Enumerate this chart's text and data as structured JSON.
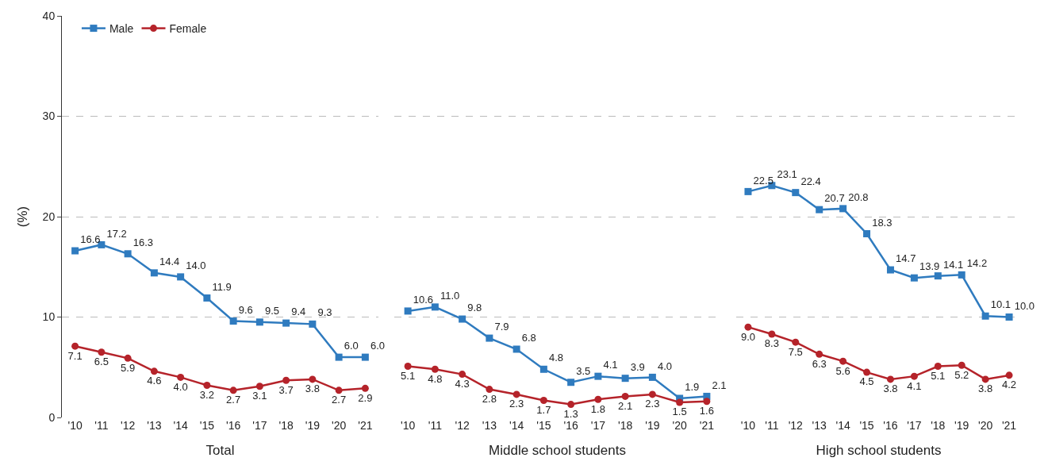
{
  "chart_data": [
    {
      "type": "line",
      "xlabel": "Total",
      "ylabel": "(%)",
      "categories": [
        "'10",
        "'11",
        "'12",
        "'13",
        "'14",
        "'15",
        "'16",
        "'17",
        "'18",
        "'19",
        "'20",
        "'21"
      ],
      "ylim": [
        0,
        40
      ],
      "yticks": [
        0,
        10,
        20,
        30,
        40
      ],
      "grid": "y",
      "legend": "top left",
      "line_style": "solid",
      "series": [
        {
          "name": "Male",
          "color": "#2f7bbf",
          "marker": "square",
          "values": [
            16.6,
            17.2,
            16.3,
            14.4,
            14.0,
            11.9,
            9.6,
            9.5,
            9.4,
            9.3,
            6.0,
            6.0
          ],
          "value_labels": [
            "16.6",
            "17.2",
            "16.3",
            "14.4",
            "14.0",
            "11.9",
            "9.6",
            "9.5",
            "9.4",
            "9.3",
            "6.0",
            "6.0"
          ]
        },
        {
          "name": "Female",
          "color": "#b5232a",
          "marker": "circle",
          "values": [
            7.1,
            6.5,
            5.9,
            4.6,
            4.0,
            3.2,
            2.7,
            3.1,
            3.7,
            3.8,
            2.7,
            2.9
          ],
          "value_labels": [
            "7.1",
            "6.5",
            "5.9",
            "4.6",
            "4.0",
            "3.2",
            "2.7",
            "3.1",
            "3.7",
            "3.8",
            "2.7",
            "2.9"
          ]
        }
      ]
    },
    {
      "type": "line",
      "xlabel": "Middle school students",
      "categories": [
        "'10",
        "'11",
        "'12",
        "'13",
        "'14",
        "'15",
        "'16",
        "'17",
        "'18",
        "'19",
        "'20",
        "'21"
      ],
      "ylim": [
        0,
        40
      ],
      "yticks": [
        0,
        10,
        20,
        30,
        40
      ],
      "tick_labels": "x",
      "grid": "y",
      "line_style": "solid",
      "series": [
        {
          "color": "#2f7bbf",
          "marker": "square",
          "values": [
            10.6,
            11.0,
            9.8,
            7.9,
            6.8,
            4.8,
            3.5,
            4.1,
            3.9,
            4.0,
            1.9,
            2.1
          ],
          "value_labels": [
            "10.6",
            "11.0",
            "9.8",
            "7.9",
            "6.8",
            "4.8",
            "3.5",
            "4.1",
            "3.9",
            "4.0",
            "1.9",
            "2.1"
          ]
        },
        {
          "color": "#b5232a",
          "marker": "circle",
          "values": [
            5.1,
            4.8,
            4.3,
            2.8,
            2.3,
            1.7,
            1.3,
            1.8,
            2.1,
            2.3,
            1.5,
            1.6
          ],
          "value_labels": [
            "5.1",
            "4.8",
            "4.3",
            "2.8",
            "2.3",
            "1.7",
            "1.3",
            "1.8",
            "2.1",
            "2.3",
            "1.5",
            "1.6"
          ]
        }
      ]
    },
    {
      "type": "line",
      "xlabel": "High school students",
      "categories": [
        "'10",
        "'11",
        "'12",
        "'13",
        "'14",
        "'15",
        "'16",
        "'17",
        "'18",
        "'19",
        "'20",
        "'21"
      ],
      "ylim": [
        0,
        40
      ],
      "yticks": [
        0,
        10,
        20,
        30,
        40
      ],
      "tick_labels": "x",
      "grid": "y",
      "line_style": "solid",
      "series": [
        {
          "color": "#2f7bbf",
          "marker": "square",
          "values": [
            22.5,
            23.1,
            22.4,
            20.7,
            20.8,
            18.3,
            14.7,
            13.9,
            14.1,
            14.2,
            10.1,
            10.0
          ],
          "value_labels": [
            "22.5",
            "23.1",
            "22.4",
            "20.7",
            "20.8",
            "18.3",
            "14.7",
            "13.9",
            "14.1",
            "14.2",
            "10.1",
            "10.0"
          ]
        },
        {
          "color": "#b5232a",
          "marker": "circle",
          "values": [
            9.0,
            8.3,
            7.5,
            6.3,
            5.6,
            4.5,
            3.8,
            4.1,
            5.1,
            5.2,
            3.8,
            4.2
          ],
          "value_labels": [
            "9.0",
            "8.3",
            "7.5",
            "6.3",
            "5.6",
            "4.5",
            "3.8",
            "4.1",
            "5.1",
            "5.2",
            "3.8",
            "4.2"
          ]
        }
      ]
    }
  ]
}
